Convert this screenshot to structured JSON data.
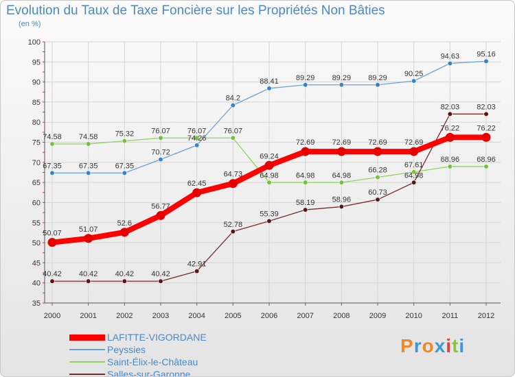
{
  "title": "Evolution du Taux de Taxe Foncière sur les Propriétés Non Bâties",
  "unit": "(en %)",
  "logo": {
    "letters": [
      "P",
      "r",
      "o",
      "x",
      "i",
      "t",
      "i"
    ],
    "colors": [
      "#f08a24",
      "#3a9ad9",
      "#f08a24",
      "#3a9ad9",
      "#e8413c",
      "#8cc63f",
      "#3a9ad9"
    ]
  },
  "chart_data": {
    "type": "line",
    "title": "Evolution du Taux de Taxe Foncière sur les Propriétés Non Bâties",
    "ylabel": "(en %)",
    "xlabel": "",
    "ylim": [
      35,
      100
    ],
    "yticks": [
      35,
      40,
      45,
      50,
      55,
      60,
      65,
      70,
      75,
      80,
      85,
      90,
      95,
      100
    ],
    "categories": [
      "2000",
      "2001",
      "2002",
      "2003",
      "2004",
      "2005",
      "2006",
      "2007",
      "2008",
      "2009",
      "2010",
      "2011",
      "2012"
    ],
    "series": [
      {
        "name": "LAFITTE-VIGORDANE",
        "color": "#ff0000",
        "marker": "#e60000",
        "width": 8,
        "values": [
          50.07,
          51.07,
          52.6,
          56.77,
          62.45,
          64.73,
          69.24,
          72.69,
          72.69,
          72.69,
          72.69,
          76.22,
          76.22
        ],
        "labels": [
          "50.07",
          "51.07",
          "52.6",
          "56.77",
          "62.45",
          "64.73",
          "69.24",
          "72.69",
          "72.69",
          "72.69",
          "72.69",
          "76.22",
          "76.22"
        ]
      },
      {
        "name": "Peyssies",
        "color": "#6aa1d8",
        "marker": "#3a82c6",
        "width": 1.3,
        "values": [
          67.35,
          67.35,
          67.35,
          70.72,
          74.26,
          84.2,
          88.41,
          89.29,
          89.29,
          89.29,
          90.25,
          94.63,
          95.16
        ],
        "labels": [
          "67.35",
          "67.35",
          "67.35",
          "70.72",
          "74.26",
          "84.2",
          "88.41",
          "89.29",
          "89.29",
          "89.29",
          "90.25",
          "94.63",
          "95.16"
        ]
      },
      {
        "name": "Saint-Élix-le-Château",
        "color": "#8fd45a",
        "marker": "#72c23a",
        "width": 1.3,
        "values": [
          74.58,
          74.58,
          75.32,
          76.07,
          76.07,
          76.07,
          64.98,
          64.98,
          64.98,
          66.28,
          67.61,
          68.96,
          68.96
        ],
        "labels": [
          "74.58",
          "74.58",
          "75.32",
          "76.07",
          "76.07",
          "76.07",
          "64.98",
          "64.98",
          "64.98",
          "66.28",
          "67.61",
          "68.96",
          "68.96"
        ]
      },
      {
        "name": "Salles-sur-Garonne",
        "color": "#7b2a2a",
        "marker": "#5a1616",
        "width": 1.3,
        "values": [
          40.42,
          40.42,
          40.42,
          40.42,
          42.91,
          52.78,
          55.39,
          58.19,
          58.96,
          60.73,
          64.98,
          82.03,
          82.03
        ],
        "labels": [
          "40.42",
          "40.42",
          "40.42",
          "40.42",
          "42.91",
          "52.78",
          "55.39",
          "58.19",
          "58.96",
          "60.73",
          "64.98",
          "82.03",
          "82.03"
        ]
      }
    ]
  }
}
